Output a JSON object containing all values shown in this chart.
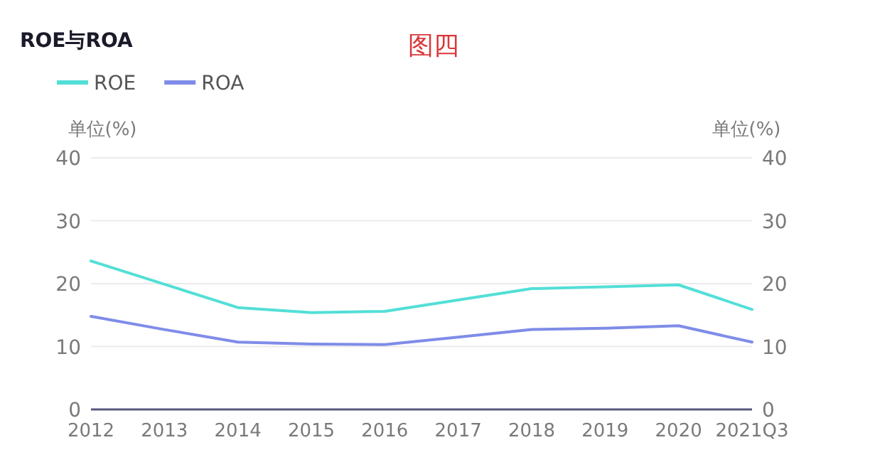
{
  "chart_data": {
    "type": "line",
    "title": "ROE与ROA",
    "annotations": [
      "图四"
    ],
    "ylabel": "单位(%)",
    "y2label": "单位(%)",
    "categories": [
      "2012",
      "2013",
      "2014",
      "2015",
      "2016",
      "2017",
      "2018",
      "2019",
      "2020",
      "2021Q3"
    ],
    "series": [
      {
        "name": "ROE",
        "color": "#53dfd6",
        "values": [
          23.6,
          19.9,
          16.2,
          15.4,
          15.6,
          17.4,
          19.2,
          19.5,
          19.8,
          15.9
        ]
      },
      {
        "name": "ROA",
        "color": "#7f8ce8",
        "values": [
          14.8,
          12.7,
          10.7,
          10.4,
          10.3,
          11.5,
          12.7,
          12.9,
          13.3,
          10.7
        ]
      }
    ],
    "ylim": [
      0,
      40
    ],
    "yticks": [
      0,
      10,
      20,
      30,
      40
    ],
    "y2lim": [
      0,
      40
    ],
    "y2ticks": [
      0,
      10,
      20,
      30,
      40
    ],
    "grid": "y",
    "legend": "top left",
    "marker": "none",
    "line_style": "solid"
  }
}
